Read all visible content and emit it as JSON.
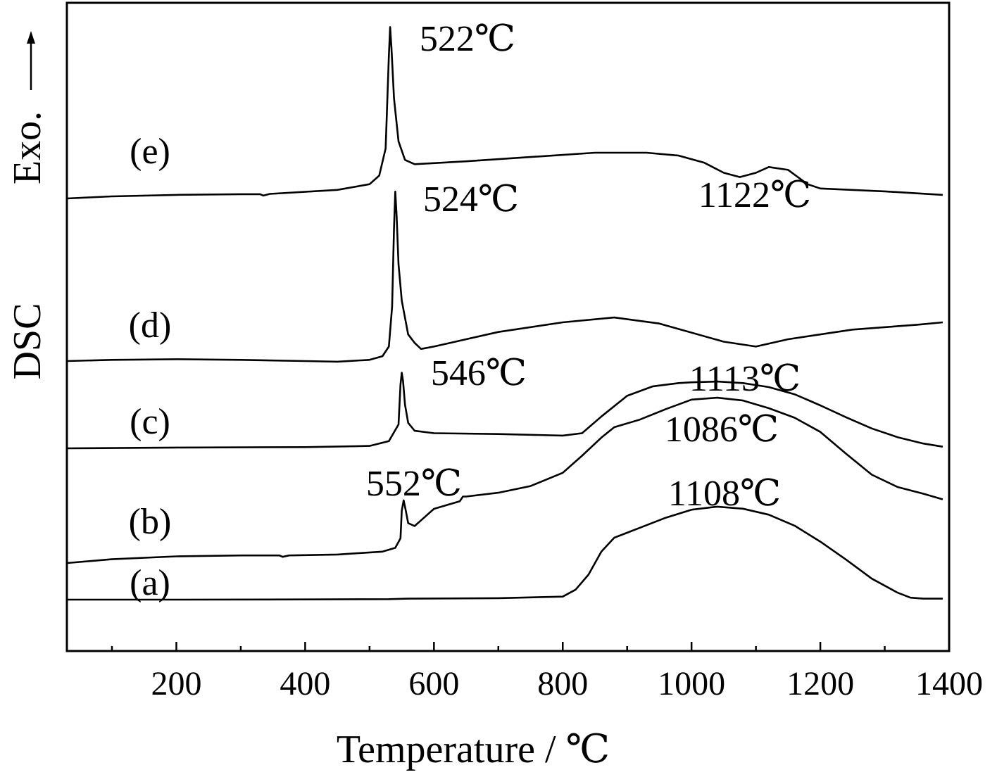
{
  "chart_data": {
    "type": "line",
    "title": "",
    "xlabel": "Temperature / ℃",
    "ylabel": "DSC",
    "ylabel_arrow": "Exo.",
    "xlim": [
      30,
      1400
    ],
    "x_ticks": [
      200,
      400,
      600,
      800,
      1000,
      1200,
      1400
    ],
    "x_tick_labels": [
      "200",
      "400",
      "600",
      "800",
      "1000",
      "1200",
      "1400"
    ],
    "x_minor_ticks": [
      100,
      300,
      500,
      700,
      900,
      1100,
      1300
    ],
    "grid": false,
    "legend": "none",
    "series": [
      {
        "name": "(a)",
        "points": [
          [
            30,
            0.0
          ],
          [
            200,
            0.0
          ],
          [
            400,
            0.02
          ],
          [
            530,
            0.05
          ],
          [
            560,
            0.1
          ],
          [
            700,
            0.15
          ],
          [
            800,
            0.3
          ],
          [
            820,
            1.0
          ],
          [
            840,
            2.5
          ],
          [
            860,
            4.8
          ],
          [
            880,
            6.2
          ],
          [
            920,
            7.2
          ],
          [
            960,
            8.2
          ],
          [
            1000,
            9.0
          ],
          [
            1040,
            9.3
          ],
          [
            1080,
            9.1
          ],
          [
            1120,
            8.5
          ],
          [
            1160,
            7.4
          ],
          [
            1200,
            5.8
          ],
          [
            1240,
            4.0
          ],
          [
            1280,
            2.1
          ],
          [
            1320,
            0.7
          ],
          [
            1340,
            0.2
          ],
          [
            1360,
            0.1
          ],
          [
            1390,
            0.1
          ]
        ]
      },
      {
        "name": "(b)",
        "points": [
          [
            30,
            0.0
          ],
          [
            100,
            0.4
          ],
          [
            200,
            0.7
          ],
          [
            300,
            0.8
          ],
          [
            360,
            0.8
          ],
          [
            365,
            0.65
          ],
          [
            375,
            0.8
          ],
          [
            450,
            0.9
          ],
          [
            520,
            1.2
          ],
          [
            540,
            1.6
          ],
          [
            548,
            2.6
          ],
          [
            550,
            5.5
          ],
          [
            553,
            6.6
          ],
          [
            556,
            5.6
          ],
          [
            560,
            4.2
          ],
          [
            570,
            3.9
          ],
          [
            580,
            4.5
          ],
          [
            600,
            5.7
          ],
          [
            620,
            6.1
          ],
          [
            640,
            6.5
          ],
          [
            645,
            7.0
          ],
          [
            650,
            7.0
          ],
          [
            700,
            7.4
          ],
          [
            750,
            8.1
          ],
          [
            800,
            9.5
          ],
          [
            830,
            11.3
          ],
          [
            860,
            13.2
          ],
          [
            880,
            14.3
          ],
          [
            920,
            15.1
          ],
          [
            960,
            16.2
          ],
          [
            1000,
            17.2
          ],
          [
            1040,
            17.4
          ],
          [
            1080,
            17.1
          ],
          [
            1120,
            16.3
          ],
          [
            1160,
            15.3
          ],
          [
            1200,
            13.8
          ],
          [
            1240,
            11.5
          ],
          [
            1280,
            9.3
          ],
          [
            1320,
            8.0
          ],
          [
            1360,
            7.3
          ],
          [
            1390,
            6.7
          ]
        ]
      },
      {
        "name": "(c)",
        "points": [
          [
            30,
            0.0
          ],
          [
            200,
            0.1
          ],
          [
            400,
            0.15
          ],
          [
            500,
            0.3
          ],
          [
            530,
            0.9
          ],
          [
            545,
            3.0
          ],
          [
            548,
            8.0
          ],
          [
            550,
            9.5
          ],
          [
            552,
            8.5
          ],
          [
            555,
            5.5
          ],
          [
            560,
            3.2
          ],
          [
            570,
            2.2
          ],
          [
            600,
            1.9
          ],
          [
            700,
            1.8
          ],
          [
            800,
            1.6
          ],
          [
            830,
            1.9
          ],
          [
            860,
            4.0
          ],
          [
            900,
            6.6
          ],
          [
            940,
            7.8
          ],
          [
            980,
            8.2
          ],
          [
            1000,
            8.3
          ],
          [
            1040,
            8.4
          ],
          [
            1080,
            8.2
          ],
          [
            1120,
            7.7
          ],
          [
            1160,
            6.8
          ],
          [
            1200,
            5.4
          ],
          [
            1240,
            3.9
          ],
          [
            1280,
            2.5
          ],
          [
            1320,
            1.4
          ],
          [
            1360,
            0.6
          ],
          [
            1390,
            0.2
          ]
        ]
      },
      {
        "name": "(d)",
        "points": [
          [
            30,
            0.0
          ],
          [
            100,
            0.1
          ],
          [
            200,
            0.15
          ],
          [
            300,
            0.1
          ],
          [
            400,
            0.0
          ],
          [
            450,
            -0.05
          ],
          [
            500,
            0.1
          ],
          [
            520,
            0.4
          ],
          [
            530,
            1.2
          ],
          [
            535,
            4.5
          ],
          [
            538,
            11.0
          ],
          [
            540,
            14.0
          ],
          [
            542,
            12.0
          ],
          [
            545,
            8.0
          ],
          [
            550,
            5.0
          ],
          [
            560,
            2.2
          ],
          [
            570,
            1.5
          ],
          [
            580,
            1.0
          ],
          [
            600,
            1.2
          ],
          [
            650,
            1.8
          ],
          [
            700,
            2.4
          ],
          [
            800,
            3.2
          ],
          [
            880,
            3.6
          ],
          [
            950,
            3.1
          ],
          [
            1050,
            1.6
          ],
          [
            1100,
            1.2
          ],
          [
            1150,
            1.8
          ],
          [
            1250,
            2.6
          ],
          [
            1350,
            3.0
          ],
          [
            1390,
            3.2
          ]
        ]
      },
      {
        "name": "(e)",
        "points": [
          [
            30,
            0.0
          ],
          [
            100,
            0.15
          ],
          [
            200,
            0.25
          ],
          [
            300,
            0.3
          ],
          [
            330,
            0.3
          ],
          [
            335,
            0.2
          ],
          [
            345,
            0.32
          ],
          [
            450,
            0.6
          ],
          [
            500,
            1.0
          ],
          [
            515,
            1.6
          ],
          [
            525,
            3.5
          ],
          [
            530,
            10.0
          ],
          [
            532,
            12.0
          ],
          [
            534,
            10.5
          ],
          [
            538,
            7.0
          ],
          [
            545,
            4.0
          ],
          [
            555,
            2.7
          ],
          [
            570,
            2.4
          ],
          [
            650,
            2.6
          ],
          [
            750,
            2.9
          ],
          [
            850,
            3.2
          ],
          [
            930,
            3.2
          ],
          [
            980,
            3.0
          ],
          [
            1020,
            2.5
          ],
          [
            1050,
            1.8
          ],
          [
            1075,
            1.5
          ],
          [
            1100,
            1.8
          ],
          [
            1120,
            2.2
          ],
          [
            1150,
            2.0
          ],
          [
            1180,
            1.0
          ],
          [
            1200,
            0.7
          ],
          [
            1300,
            0.5
          ],
          [
            1390,
            0.25
          ]
        ]
      }
    ],
    "annotations": [
      {
        "text": "522℃",
        "x": 522,
        "series": "(e)"
      },
      {
        "text": "1122℃",
        "x": 1122,
        "series": "(e)"
      },
      {
        "text": "524℃",
        "x": 524,
        "series": "(d)"
      },
      {
        "text": "546℃",
        "x": 546,
        "series": "(c)"
      },
      {
        "text": "1113℃",
        "x": 1113,
        "series": "(c)"
      },
      {
        "text": "1086℃",
        "x": 1086,
        "series": "(b)"
      },
      {
        "text": "552℃",
        "x": 552,
        "series": "(b)"
      },
      {
        "text": "1108℃",
        "x": 1108,
        "series": "(a)"
      }
    ]
  }
}
